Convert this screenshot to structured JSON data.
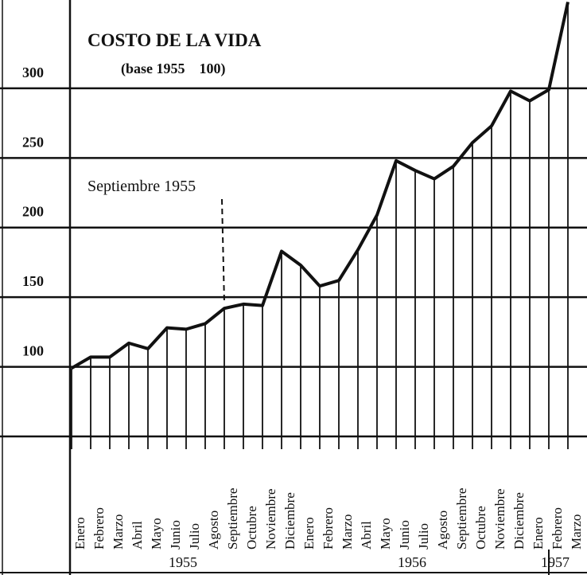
{
  "chart_data": {
    "type": "line",
    "title": "COSTO DE LA VIDA",
    "subtitle": "(base 1955    100)",
    "annotation": "Septiembre 1955",
    "categories": [
      "Enero",
      "Febrero",
      "Marzo",
      "Abril",
      "Mayo",
      "Junio",
      "Julio",
      "Agosto",
      "Septiembre",
      "Octubre",
      "Noviembre",
      "Diciembre",
      "Enero",
      "Febrero",
      "Marzo",
      "Abril",
      "Mayo",
      "Junio",
      "Julio",
      "Agosto",
      "Septiembre",
      "Octubre",
      "Noviembre",
      "Diciembre",
      "Enero",
      "Febrero",
      "Marzo"
    ],
    "years": [
      "1955",
      "1956",
      "1957"
    ],
    "values": [
      99,
      107,
      107,
      117,
      113,
      128,
      127,
      131,
      142,
      145,
      144,
      183,
      173,
      158,
      162,
      184,
      209,
      248,
      241,
      235,
      244,
      261,
      273,
      298,
      291,
      299,
      362
    ],
    "color": "#111111",
    "ylim": [
      50,
      360
    ],
    "yticks": [
      100,
      150,
      200,
      250,
      300
    ],
    "grid": true
  }
}
